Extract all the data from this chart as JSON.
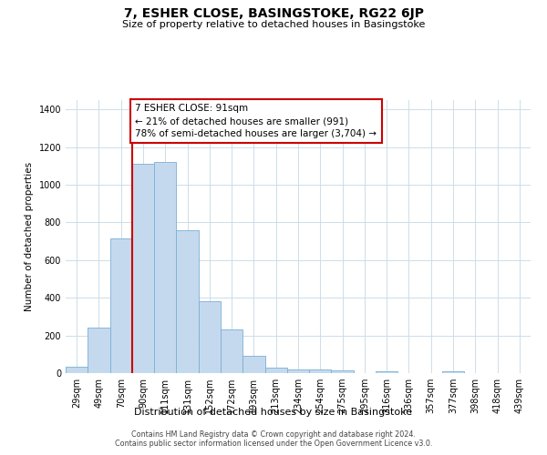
{
  "title": "7, ESHER CLOSE, BASINGSTOKE, RG22 6JP",
  "subtitle": "Size of property relative to detached houses in Basingstoke",
  "xlabel": "Distribution of detached houses by size in Basingstoke",
  "ylabel": "Number of detached properties",
  "bar_labels": [
    "29sqm",
    "49sqm",
    "70sqm",
    "90sqm",
    "111sqm",
    "131sqm",
    "152sqm",
    "172sqm",
    "193sqm",
    "213sqm",
    "234sqm",
    "254sqm",
    "275sqm",
    "295sqm",
    "316sqm",
    "336sqm",
    "357sqm",
    "377sqm",
    "398sqm",
    "418sqm",
    "439sqm"
  ],
  "bar_values": [
    35,
    240,
    715,
    1110,
    1120,
    760,
    380,
    230,
    90,
    30,
    20,
    20,
    15,
    0,
    10,
    0,
    0,
    10,
    0,
    0,
    0
  ],
  "bar_color": "#c5d9ee",
  "bar_edge_color": "#7aafd4",
  "property_line_color": "#cc0000",
  "annotation_line1": "7 ESHER CLOSE: 91sqm",
  "annotation_line2": "← 21% of detached houses are smaller (991)",
  "annotation_line3": "78% of semi-detached houses are larger (3,704) →",
  "annotation_box_color": "#ffffff",
  "annotation_box_edge": "#cc0000",
  "ylim": [
    0,
    1450
  ],
  "yticks": [
    0,
    200,
    400,
    600,
    800,
    1000,
    1200,
    1400
  ],
  "footer_text": "Contains HM Land Registry data © Crown copyright and database right 2024.\nContains public sector information licensed under the Open Government Licence v3.0.",
  "background_color": "#ffffff",
  "grid_color": "#ccdde8"
}
